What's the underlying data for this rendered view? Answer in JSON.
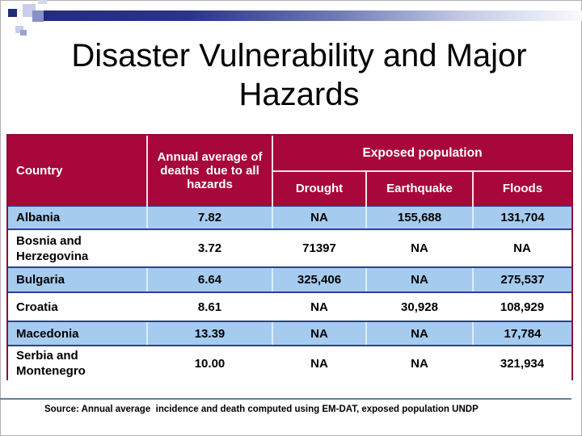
{
  "slide": {
    "title": "Disaster Vulnerability and Major Hazards",
    "source": "Source: Annual average  incidence and death computed using EM-DAT, exposed population UNDP"
  },
  "table": {
    "headers": {
      "country": "Country",
      "annual": "Annual average of deaths  due to all hazards",
      "exposed": "Exposed population",
      "sub": [
        "Drought",
        "Earthquake",
        "Floods"
      ]
    },
    "rows": [
      {
        "country": "Albania",
        "annual": "7.82",
        "drought": "NA",
        "earthquake": "155,688",
        "floods": "131,704"
      },
      {
        "country": "Bosnia and Herzegovina",
        "annual": "3.72",
        "drought": "71397",
        "earthquake": "NA",
        "floods": "NA"
      },
      {
        "country": "Bulgaria",
        "annual": "6.64",
        "drought": "325,406",
        "earthquake": "NA",
        "floods": "275,537"
      },
      {
        "country": "Croatia",
        "annual": "8.61",
        "drought": "NA",
        "earthquake": "30,928",
        "floods": "108,929"
      },
      {
        "country": "Macedonia",
        "annual": "13.39",
        "drought": "NA",
        "earthquake": "NA",
        "floods": "17,784"
      },
      {
        "country": "Serbia and Montenegro",
        "annual": "10.00",
        "drought": "NA",
        "earthquake": "NA",
        "floods": "321,934"
      }
    ]
  },
  "chart_data": {
    "type": "table",
    "title": "Disaster Vulnerability and Major Hazards",
    "columns": [
      "Country",
      "Annual average of deaths due to all hazards",
      "Exposed population - Drought",
      "Exposed population - Earthquake",
      "Exposed population - Floods"
    ],
    "rows": [
      [
        "Albania",
        7.82,
        null,
        155688,
        131704
      ],
      [
        "Bosnia and Herzegovina",
        3.72,
        71397,
        null,
        null
      ],
      [
        "Bulgaria",
        6.64,
        325406,
        null,
        275537
      ],
      [
        "Croatia",
        8.61,
        null,
        30928,
        108929
      ],
      [
        "Macedonia",
        13.39,
        null,
        null,
        17784
      ],
      [
        "Serbia and Montenegro",
        10.0,
        null,
        null,
        321934
      ]
    ],
    "na_label": "NA"
  },
  "colors": {
    "header_bg": "#A7073B",
    "alt_row_bg": "#A5CCEF",
    "row_border_navy": "#2C3F94",
    "table_frame_maroon": "#8A0F34",
    "bottom_rule_teal": "#5B8494",
    "deco_bar_navy": "#232C7C"
  }
}
